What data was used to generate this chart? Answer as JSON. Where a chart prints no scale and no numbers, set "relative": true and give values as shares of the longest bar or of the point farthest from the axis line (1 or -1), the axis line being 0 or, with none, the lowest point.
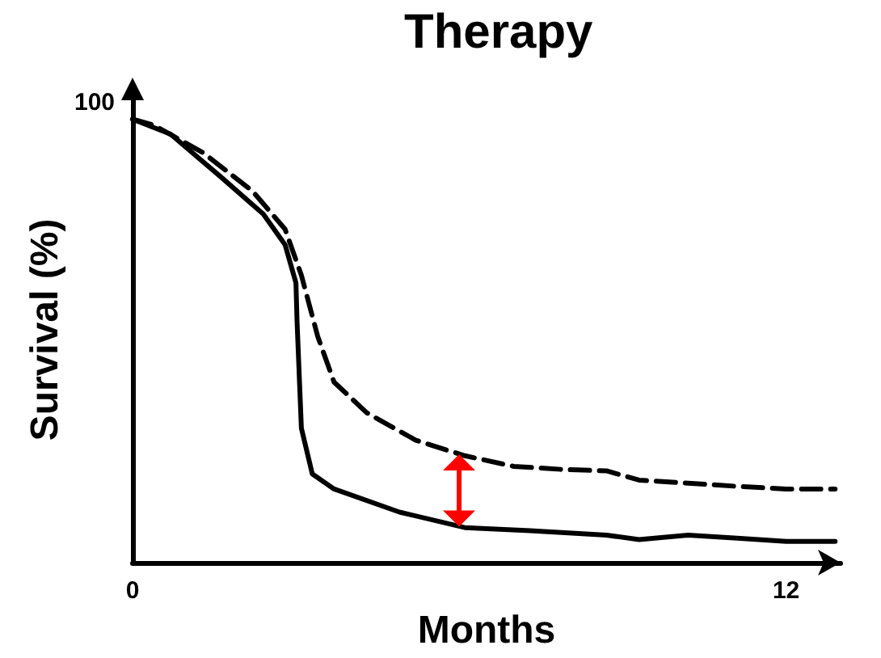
{
  "chart_data": {
    "type": "line",
    "title": "Therapy",
    "xlabel": "Months",
    "ylabel": "Survival (%)",
    "annotations": [
      "100"
    ],
    "relative": true,
    "xlim": [
      0,
      13
    ],
    "xticks": [
      0,
      12
    ],
    "grid": false,
    "marker": "none",
    "series": [
      {
        "color": "#000000",
        "line_style": "dashed",
        "x": [
          0,
          0.4,
          1.3,
          2.2,
          2.8,
          3.1,
          3.4,
          3.7,
          4.3,
          5.2,
          6.1,
          7,
          7.9,
          8.7,
          9.3,
          10.2,
          11.1,
          12,
          12.9
        ],
        "values": [
          1,
          0.986,
          0.924,
          0.838,
          0.752,
          0.648,
          0.51,
          0.407,
          0.338,
          0.276,
          0.241,
          0.217,
          0.21,
          0.207,
          0.186,
          0.179,
          0.172,
          0.166,
          0.166
        ]
      },
      {
        "color": "#000000",
        "line_style": "solid",
        "x": [
          0,
          0.7,
          1.6,
          2.4,
          2.8,
          3,
          3.02,
          3.1,
          3.3,
          3.7,
          4.9,
          6.1,
          7.3,
          8.7,
          9.3,
          10.2,
          11.1,
          12,
          12.9
        ],
        "values": [
          1,
          0.966,
          0.872,
          0.786,
          0.717,
          0.631,
          0.545,
          0.303,
          0.2,
          0.166,
          0.114,
          0.079,
          0.072,
          0.062,
          0.052,
          0.062,
          0.055,
          0.048,
          0.048
        ]
      }
    ]
  }
}
